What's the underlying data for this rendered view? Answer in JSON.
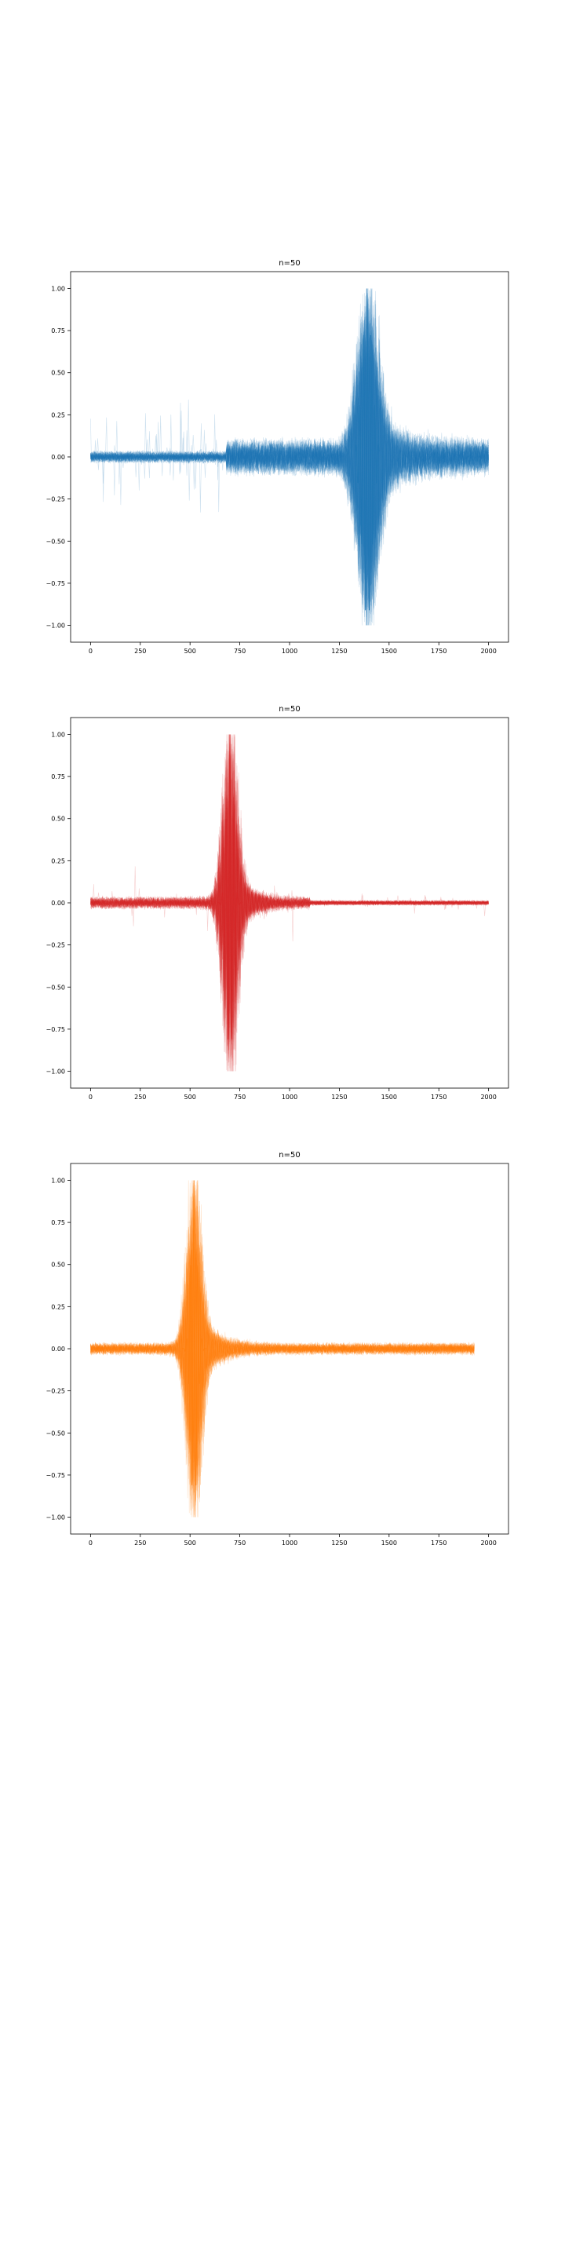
{
  "chart_data": [
    {
      "type": "line",
      "title": "n=50",
      "xlabel": "",
      "ylabel": "",
      "n_series": 50,
      "color": "#1f77b4",
      "xlim": [
        -100,
        2100
      ],
      "ylim": [
        -1.1,
        1.1
      ],
      "xticks": [
        0,
        250,
        500,
        750,
        1000,
        1250,
        1500,
        1750,
        2000
      ],
      "xtick_labels": [
        "0",
        "250",
        "500",
        "750",
        "1000",
        "1250",
        "1500",
        "1750",
        "2000"
      ],
      "yticks": [
        1.0,
        0.75,
        0.5,
        0.25,
        0.0,
        -0.25,
        -0.5,
        -0.75,
        -1.0
      ],
      "ytick_labels": [
        "1.00",
        "0.75",
        "0.50",
        "0.25",
        "0.00",
        "−0.25",
        "−0.50",
        "−0.75",
        "−1.00"
      ],
      "x_range": [
        0,
        2000
      ],
      "peak_x": 1390,
      "y_peak": [
        -1.0,
        1.0
      ],
      "grid": false
    },
    {
      "type": "line",
      "title": "n=50",
      "xlabel": "",
      "ylabel": "",
      "n_series": 50,
      "color": "#d62728",
      "xlim": [
        -100,
        2100
      ],
      "ylim": [
        -1.1,
        1.1
      ],
      "xticks": [
        0,
        250,
        500,
        750,
        1000,
        1250,
        1500,
        1750,
        2000
      ],
      "xtick_labels": [
        "0",
        "250",
        "500",
        "750",
        "1000",
        "1250",
        "1500",
        "1750",
        "2000"
      ],
      "yticks": [
        1.0,
        0.75,
        0.5,
        0.25,
        0.0,
        -0.25,
        -0.5,
        -0.75,
        -1.0
      ],
      "ytick_labels": [
        "1.00",
        "0.75",
        "0.50",
        "0.25",
        "0.00",
        "−0.25",
        "−0.50",
        "−0.75",
        "−1.00"
      ],
      "x_range": [
        0,
        2000
      ],
      "peak_x": 700,
      "y_peak": [
        -1.0,
        1.0
      ],
      "grid": false
    },
    {
      "type": "line",
      "title": "n=50",
      "xlabel": "",
      "ylabel": "",
      "n_series": 50,
      "color": "#ff7f0e",
      "xlim": [
        -100,
        2100
      ],
      "ylim": [
        -1.1,
        1.1
      ],
      "xticks": [
        0,
        250,
        500,
        750,
        1000,
        1250,
        1500,
        1750,
        2000
      ],
      "xtick_labels": [
        "0",
        "250",
        "500",
        "750",
        "1000",
        "1250",
        "1500",
        "1750",
        "2000"
      ],
      "yticks": [
        1.0,
        0.75,
        0.5,
        0.25,
        0.0,
        -0.25,
        -0.5,
        -0.75,
        -1.0
      ],
      "ytick_labels": [
        "1.00",
        "0.75",
        "0.50",
        "0.25",
        "0.00",
        "−0.25",
        "−0.50",
        "−0.75",
        "−1.00"
      ],
      "x_range": [
        0,
        1930
      ],
      "peak_x": 520,
      "y_peak": [
        -1.0,
        1.0
      ],
      "grid": false
    }
  ]
}
